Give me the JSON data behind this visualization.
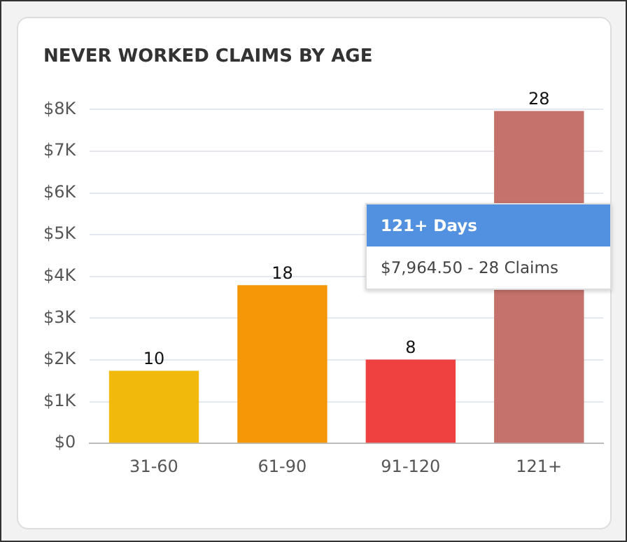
{
  "chart_data": {
    "type": "bar",
    "title": "NEVER WORKED CLAIMS BY AGE",
    "categories": [
      "31-60",
      "61-90",
      "91-120",
      "121+"
    ],
    "values": [
      1740,
      3790,
      2010,
      7964.5
    ],
    "colors": [
      "#f0b90b",
      "#f59707",
      "#ef4140",
      "#c4726b"
    ],
    "ylim": [
      0,
      8000
    ],
    "yticks": [
      {
        "value": 0,
        "label": "$0"
      },
      {
        "value": 1000,
        "label": "$1K"
      },
      {
        "value": 2000,
        "label": "$2K"
      },
      {
        "value": 3000,
        "label": "$3K"
      },
      {
        "value": 4000,
        "label": "$4K"
      },
      {
        "value": 5000,
        "label": "$5K"
      },
      {
        "value": 6000,
        "label": "$6K"
      },
      {
        "value": 7000,
        "label": "$7K"
      },
      {
        "value": 8000,
        "label": "$8K"
      }
    ],
    "grid": "y",
    "annotations": [
      {
        "text": "10",
        "x": "31-60",
        "y": 1740
      },
      {
        "text": "18",
        "x": "61-90",
        "y": 3790
      },
      {
        "text": "8",
        "x": "91-120",
        "y": 2010
      },
      {
        "text": "28",
        "x": "121+",
        "y": 7964.5
      },
      "121+ Days",
      "$7,964.50 - 28 Claims"
    ]
  }
}
